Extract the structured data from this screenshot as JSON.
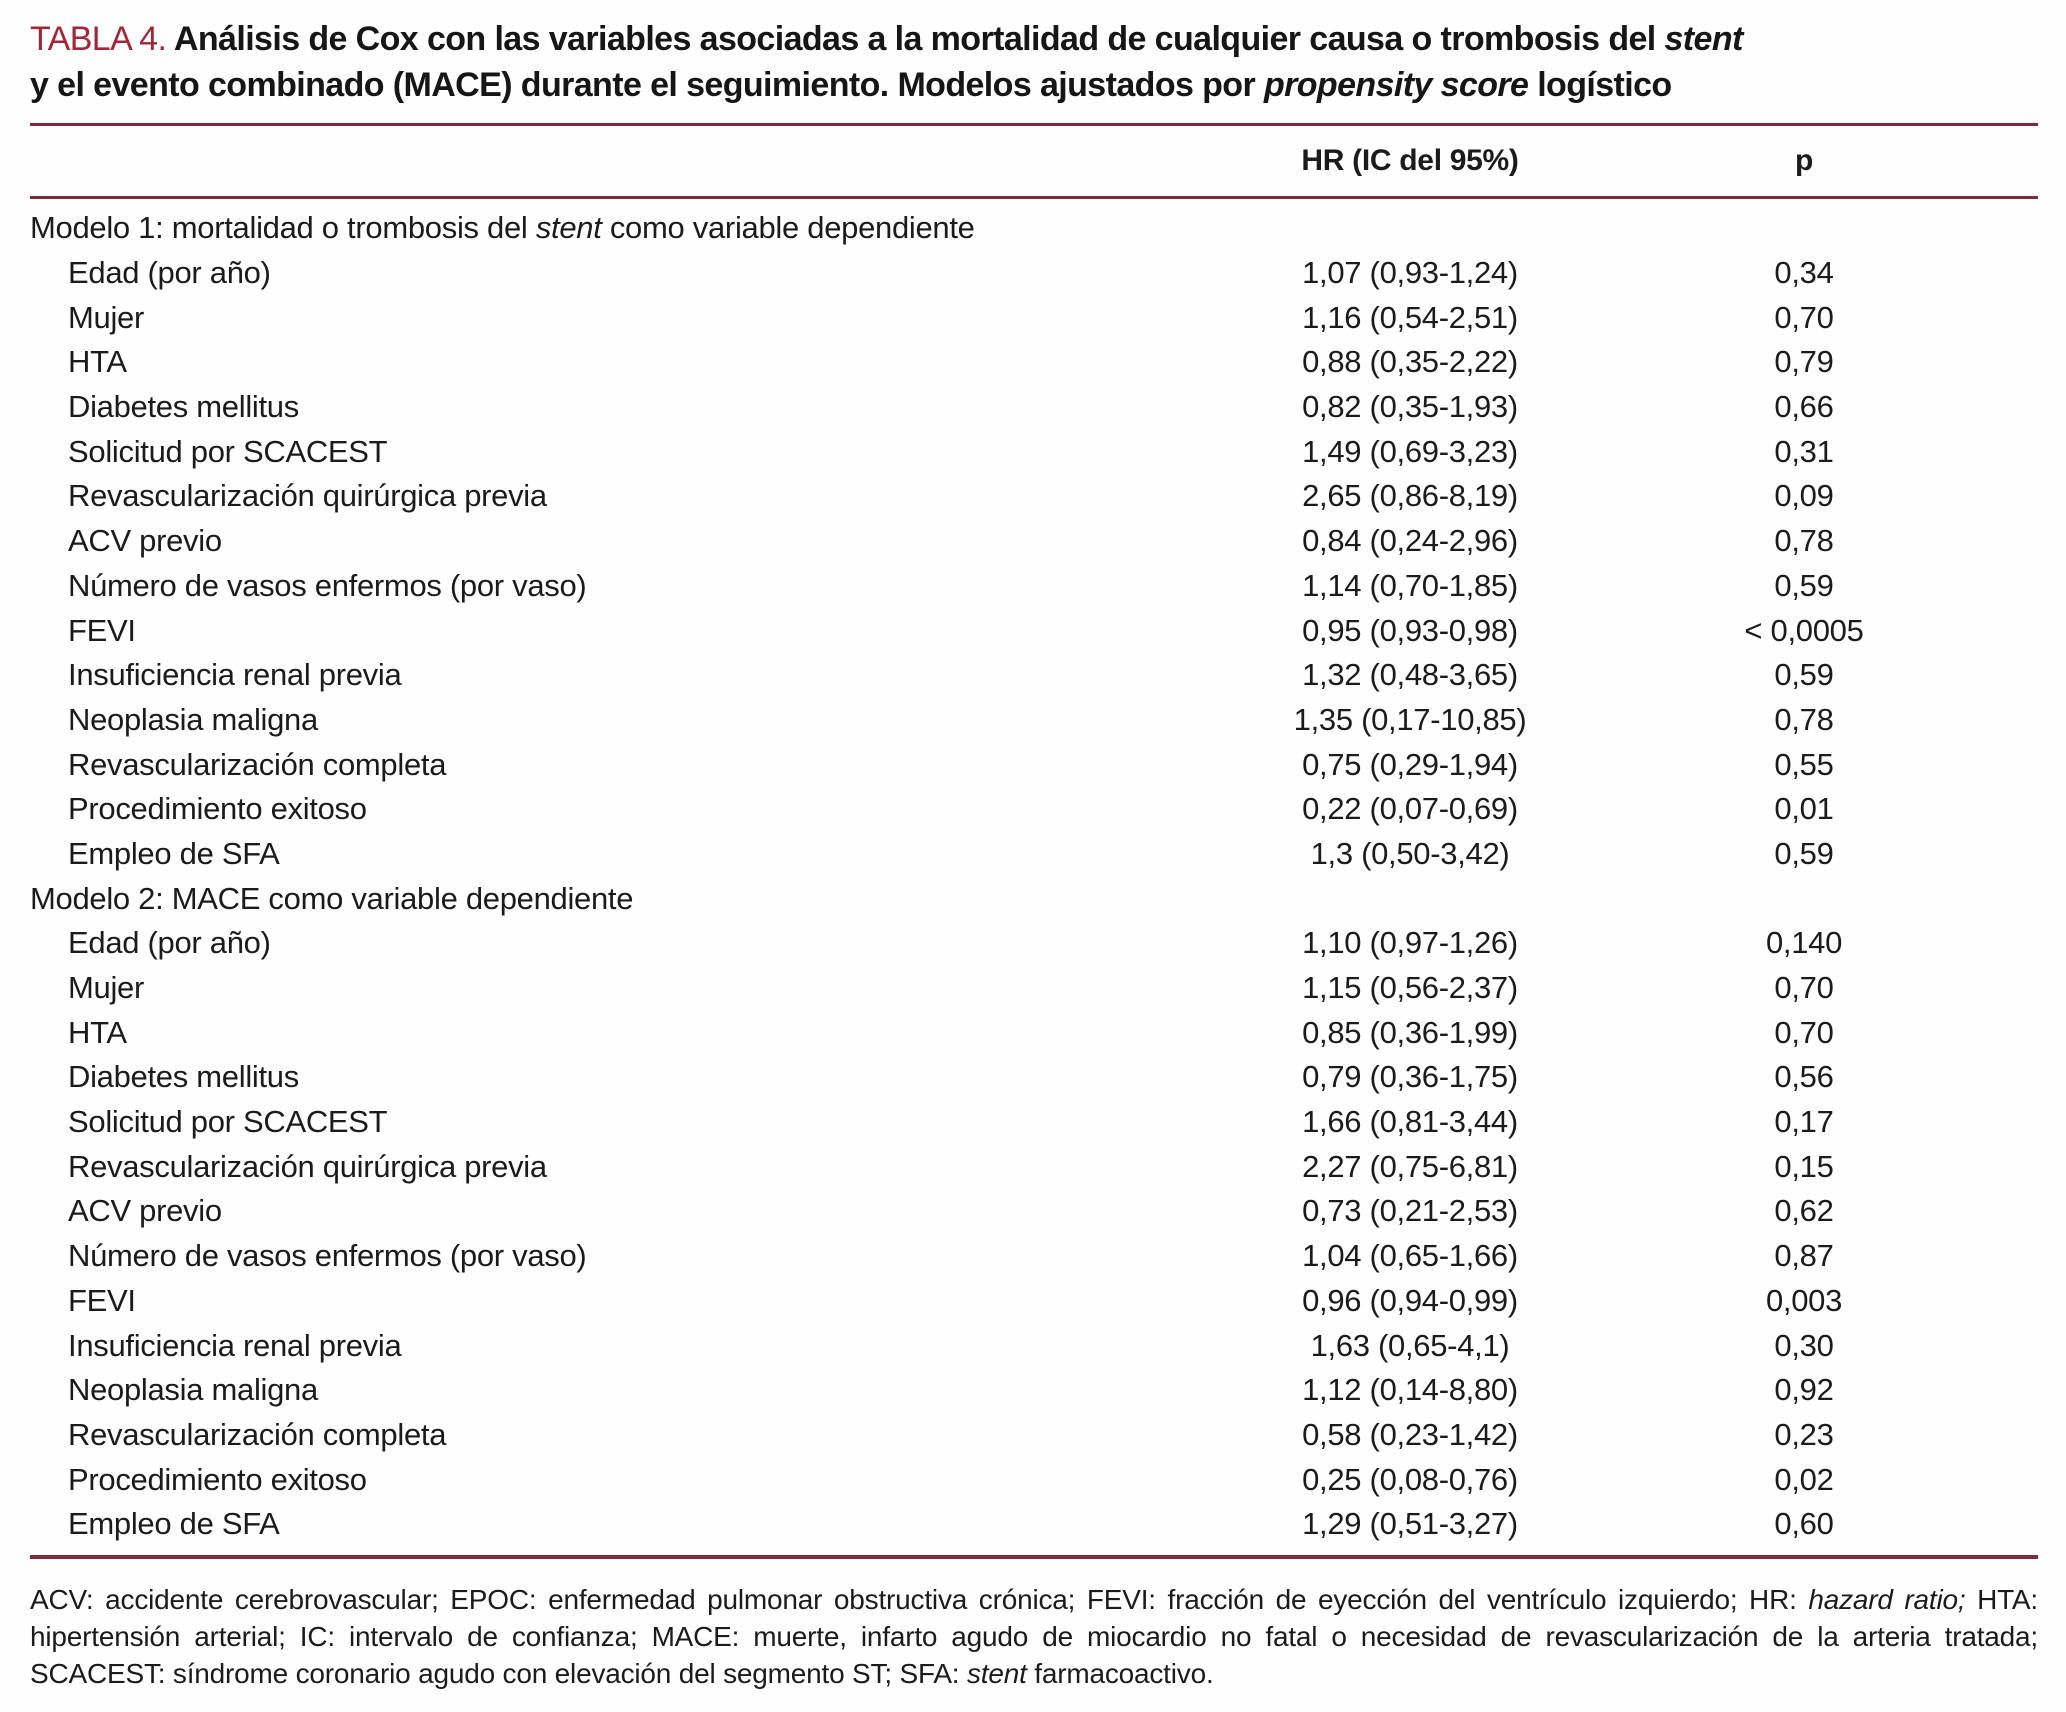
{
  "colors": {
    "accent_red": "#A32638",
    "rule_maroon": "#7D2B3A",
    "text": "#1B1B1D",
    "background": "#FEFEFE"
  },
  "table": {
    "label": "TABLA 4.",
    "title_line1": [
      {
        "t": " Análisis de Cox con las variables asociadas a la mortalidad de cualquier causa o trombosis del ",
        "s": "b"
      },
      {
        "t": "stent",
        "s": "bi"
      }
    ],
    "title_line2": [
      {
        "t": "y el evento combinado (MACE) durante el seguimiento. Modelos ajustados por ",
        "s": "b"
      },
      {
        "t": "propensity score",
        "s": "bi"
      },
      {
        "t": " logístico",
        "s": "b"
      }
    ],
    "columns": {
      "hr": "HR (IC del 95%)",
      "p": "p"
    },
    "sections": [
      {
        "header_segments": [
          {
            "t": "Modelo 1: mortalidad o trombosis del ",
            "s": ""
          },
          {
            "t": "stent",
            "s": "i"
          },
          {
            "t": " como variable dependiente",
            "s": ""
          }
        ],
        "rows": [
          {
            "label": "Edad (por año)",
            "hr": "1,07 (0,93-1,24)",
            "p": "0,34"
          },
          {
            "label": "Mujer",
            "hr": "1,16 (0,54-2,51)",
            "p": "0,70"
          },
          {
            "label": "HTA",
            "hr": "0,88 (0,35-2,22)",
            "p": "0,79"
          },
          {
            "label": "Diabetes mellitus",
            "hr": "0,82 (0,35-1,93)",
            "p": "0,66"
          },
          {
            "label": "Solicitud por SCACEST",
            "hr": "1,49 (0,69-3,23)",
            "p": "0,31"
          },
          {
            "label": "Revascularización quirúrgica previa",
            "hr": "2,65 (0,86-8,19)",
            "p": "0,09"
          },
          {
            "label": "ACV previo",
            "hr": "0,84 (0,24-2,96)",
            "p": "0,78"
          },
          {
            "label": "Número de vasos enfermos (por vaso)",
            "hr": "1,14 (0,70-1,85)",
            "p": "0,59"
          },
          {
            "label": "FEVI",
            "hr": "0,95 (0,93-0,98)",
            "p": "< 0,0005"
          },
          {
            "label": "Insuficiencia renal previa",
            "hr": "1,32 (0,48-3,65)",
            "p": "0,59"
          },
          {
            "label": "Neoplasia maligna",
            "hr": "1,35 (0,17-10,85)",
            "p": "0,78"
          },
          {
            "label": "Revascularización completa",
            "hr": "0,75 (0,29-1,94)",
            "p": "0,55"
          },
          {
            "label": "Procedimiento exitoso",
            "hr": "0,22 (0,07-0,69)",
            "p": "0,01"
          },
          {
            "label": "Empleo de SFA",
            "hr": "1,3 (0,50-3,42)",
            "p": "0,59"
          }
        ]
      },
      {
        "header_segments": [
          {
            "t": "Modelo 2: MACE como variable dependiente",
            "s": ""
          }
        ],
        "rows": [
          {
            "label": "Edad (por año)",
            "hr": "1,10 (0,97-1,26)",
            "p": "0,140"
          },
          {
            "label": "Mujer",
            "hr": "1,15 (0,56-2,37)",
            "p": "0,70"
          },
          {
            "label": "HTA",
            "hr": "0,85 (0,36-1,99)",
            "p": "0,70"
          },
          {
            "label": "Diabetes mellitus",
            "hr": "0,79 (0,36-1,75)",
            "p": "0,56"
          },
          {
            "label": "Solicitud por SCACEST",
            "hr": "1,66 (0,81-3,44)",
            "p": "0,17"
          },
          {
            "label": "Revascularización quirúrgica previa",
            "hr": "2,27 (0,75-6,81)",
            "p": "0,15"
          },
          {
            "label": "ACV previo",
            "hr": "0,73 (0,21-2,53)",
            "p": "0,62"
          },
          {
            "label": "Número de vasos enfermos (por vaso)",
            "hr": "1,04 (0,65-1,66)",
            "p": "0,87"
          },
          {
            "label": "FEVI",
            "hr": "0,96 (0,94-0,99)",
            "p": "0,003"
          },
          {
            "label": "Insuficiencia renal previa",
            "hr": "1,63 (0,65-4,1)",
            "p": "0,30"
          },
          {
            "label": "Neoplasia maligna",
            "hr": "1,12 (0,14-8,80)",
            "p": "0,92"
          },
          {
            "label": "Revascularización completa",
            "hr": "0,58 (0,23-1,42)",
            "p": "0,23"
          },
          {
            "label": "Procedimiento exitoso",
            "hr": "0,25 (0,08-0,76)",
            "p": "0,02"
          },
          {
            "label": "Empleo de SFA",
            "hr": "1,29 (0,51-3,27)",
            "p": "0,60"
          }
        ]
      }
    ],
    "footnote_segments": [
      {
        "t": "ACV: accidente cerebrovascular; EPOC: enfermedad pulmonar obstructiva crónica; FEVI: fracción de eyección del ventrículo izquierdo; HR: ",
        "s": ""
      },
      {
        "t": "hazard ratio;",
        "s": "i"
      },
      {
        "t": " HTA: hipertensión arterial; IC: intervalo de confianza; MACE: muerte, infarto agudo de miocardio no fatal o necesidad de revascularización de la arteria tratada; SCACEST: síndrome coronario agudo con elevación del segmento ST; SFA: ",
        "s": ""
      },
      {
        "t": "stent",
        "s": "i"
      },
      {
        "t": " farmacoactivo.",
        "s": ""
      }
    ]
  }
}
